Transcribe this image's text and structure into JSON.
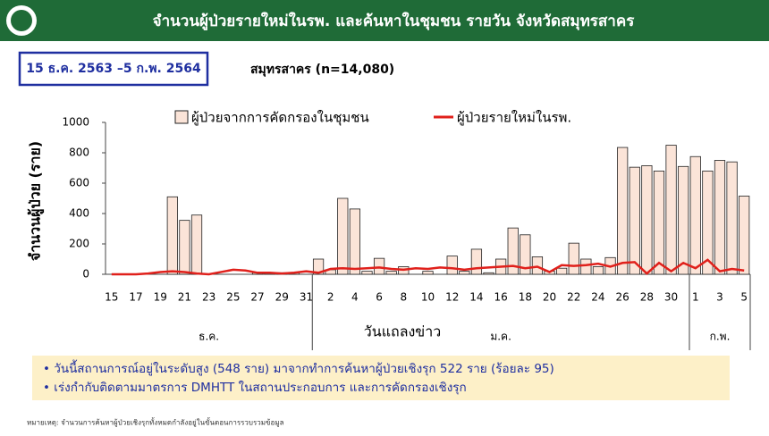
{
  "header": {
    "title": "จำนวนผู้ป่วยรายใหม่ในรพ. และค้นหาในชุมชน รายวัน จังหวัดสมุทรสาคร"
  },
  "date_range": "15 ธ.ค. 2563 –5 ก.พ. 2564",
  "chart_data": {
    "type": "bar",
    "title": "สมุทรสาคร (n=14,080)",
    "y_label": "จำนวนผู้ป่วย (ราย)",
    "x_label": "วันแถลงข่าว",
    "month_labels": [
      "ธ.ค.",
      "ม.ค.",
      "ก.พ."
    ],
    "categories": [
      "15",
      null,
      "17",
      null,
      "19",
      null,
      "21",
      null,
      "23",
      null,
      "25",
      null,
      "27",
      null,
      "29",
      null,
      "31",
      null,
      "2",
      null,
      "4",
      null,
      "6",
      null,
      "8",
      null,
      "10",
      null,
      "12",
      null,
      "14",
      null,
      "16",
      null,
      "18",
      null,
      "20",
      null,
      "22",
      null,
      "24",
      null,
      "26",
      null,
      "28",
      null,
      "30",
      null,
      "1",
      null,
      "3",
      null,
      "5"
    ],
    "series": [
      {
        "name": "ผู้ป่วยจากการคัดกรองในชุมชน",
        "type": "bar",
        "color": "#fbe4d8",
        "values": [
          0,
          0,
          0,
          0,
          0,
          510,
          355,
          390,
          0,
          0,
          0,
          0,
          10,
          10,
          10,
          10,
          0,
          100,
          30,
          500,
          430,
          20,
          105,
          20,
          50,
          0,
          20,
          0,
          120,
          20,
          165,
          10,
          100,
          305,
          260,
          115,
          20,
          40,
          205,
          100,
          50,
          110,
          835,
          705,
          715,
          680,
          850,
          710,
          775,
          680,
          750,
          740,
          515
        ]
      },
      {
        "name": "ผู้ป่วยรายใหม่ในรพ.",
        "type": "line",
        "color": "#e0201b",
        "values": [
          0,
          0,
          0,
          5,
          15,
          20,
          15,
          5,
          0,
          15,
          30,
          25,
          10,
          10,
          5,
          10,
          20,
          10,
          35,
          40,
          35,
          40,
          45,
          35,
          30,
          40,
          35,
          45,
          40,
          30,
          40,
          45,
          50,
          55,
          40,
          50,
          15,
          60,
          55,
          60,
          70,
          50,
          75,
          80,
          5,
          75,
          20,
          75,
          40,
          95,
          20,
          35,
          25
        ]
      }
    ],
    "ylim": [
      0,
      1000
    ],
    "yticks": [
      0,
      200,
      400,
      600,
      800,
      1000
    ]
  },
  "notes": [
    "• วันนี้สถานการณ์อยู่ในระดับสูง (548 ราย) มาจากทำการค้นหาผู้ป่วยเชิงรุก 522 ราย (ร้อยละ 95)",
    "• เร่งกำกับติดตามมาตรการ DMHTT ในสถานประกอบการ และการคัดกรองเชิงรุก"
  ],
  "footnote": "หมายเหตุ: จำนวนการค้นหาผู้ป่วยเชิงรุกทั้งหมดกำลังอยู่ในขั้นตอนการรวบรวมข้อมูล"
}
